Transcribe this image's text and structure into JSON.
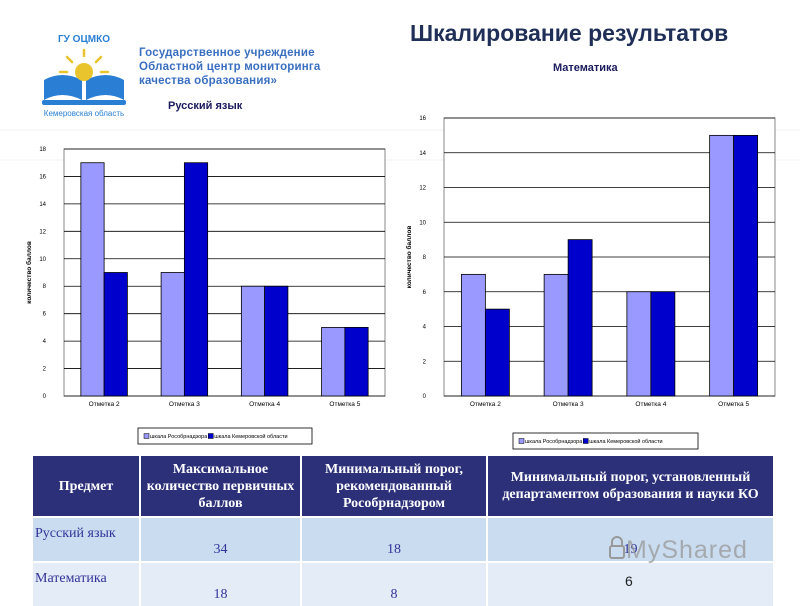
{
  "header": {
    "title": "Шкалирование результатов",
    "org_lines": [
      "Государственное учреждение",
      "Областной центр мониторинга",
      "качества образования»"
    ],
    "logo_arc": "ГУ ОЦМКО",
    "logo_region": "Кемеровская область"
  },
  "chart_data": [
    {
      "type": "bar",
      "title": "Русский язык",
      "categories": [
        "Отметка 2",
        "Отметка 3",
        "Отметка 4",
        "Отметка 5"
      ],
      "series": [
        {
          "name": "шкала Рособрнадзора",
          "values": [
            17,
            9,
            8,
            5
          ],
          "color": "#9999ff"
        },
        {
          "name": "шкала Кемеровской области",
          "values": [
            9,
            17,
            8,
            5
          ],
          "color": "#0000cc"
        }
      ],
      "ylabel": "количество баллов",
      "ylim": [
        0,
        18
      ],
      "yticks": [
        0,
        2,
        4,
        6,
        8,
        10,
        12,
        14,
        16,
        18
      ],
      "legend": "bottom"
    },
    {
      "type": "bar",
      "title": "Математика",
      "categories": [
        "Отметка 2",
        "Отметка 3",
        "Отметка 4",
        "Отметка 5"
      ],
      "series": [
        {
          "name": "шкала Рособрнадзора",
          "values": [
            7,
            7,
            6,
            15
          ],
          "color": "#9999ff"
        },
        {
          "name": "шкала Кемеровской области",
          "values": [
            5,
            9,
            6,
            15
          ],
          "color": "#0000cc"
        }
      ],
      "ylabel": "количество баллов",
      "ylim": [
        0,
        16
      ],
      "yticks": [
        0,
        2,
        4,
        6,
        8,
        10,
        12,
        14,
        16
      ],
      "legend": "bottom"
    }
  ],
  "table": {
    "headers": [
      "Предмет",
      "Максимальное количество первичных баллов",
      "Минимальный порог, рекомендованный Рособрнадзором",
      "Минимальный порог, установленный департаментом образования и науки КО"
    ],
    "rows": [
      [
        "Русский язык",
        "34",
        "18",
        "19"
      ],
      [
        "Математика",
        "18",
        "8",
        ""
      ]
    ]
  },
  "watermark": "MyShared",
  "page_number": "6"
}
